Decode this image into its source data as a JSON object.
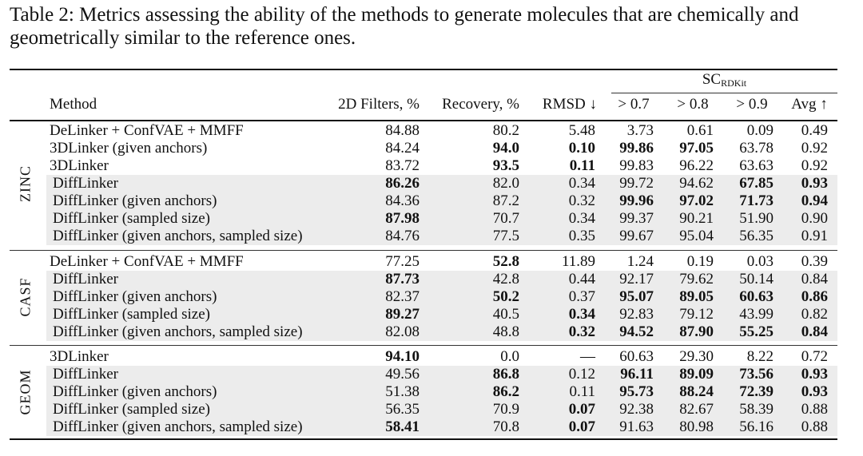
{
  "caption": "Table 2: Metrics assessing the ability of the methods to generate molecules that are chemically and geometrically similar to the reference ones.",
  "headers": {
    "method": "Method",
    "filters": "2D Filters, %",
    "recovery": "Recovery, %",
    "rmsd": "RMSD ↓",
    "sc_main": "SC",
    "sc_sub": "RDKit",
    "sc07": "> 0.7",
    "sc08": "> 0.8",
    "sc09": "> 0.9",
    "avg": "Avg ↑"
  },
  "groups": [
    {
      "name": "ZINC",
      "rows": [
        {
          "shaded": false,
          "method": "DeLinker + ConfVAE + MMFF",
          "filters": "84.88",
          "recovery": "80.2",
          "rmsd": "5.48",
          "sc07": "3.73",
          "sc08": "0.61",
          "sc09": "0.09",
          "avg": "0.49",
          "bold": []
        },
        {
          "shaded": false,
          "method": "3DLinker (given anchors)",
          "filters": "84.24",
          "recovery": "94.0",
          "rmsd": "0.10",
          "sc07": "99.86",
          "sc08": "97.05",
          "sc09": "63.78",
          "avg": "0.92",
          "bold": [
            "recovery",
            "rmsd",
            "sc07",
            "sc08"
          ]
        },
        {
          "shaded": false,
          "method": "3DLinker",
          "filters": "83.72",
          "recovery": "93.5",
          "rmsd": "0.11",
          "sc07": "99.83",
          "sc08": "96.22",
          "sc09": "63.63",
          "avg": "0.92",
          "bold": [
            "recovery",
            "rmsd"
          ]
        },
        {
          "shaded": true,
          "method": "DiffLinker",
          "filters": "86.26",
          "recovery": "82.0",
          "rmsd": "0.34",
          "sc07": "99.72",
          "sc08": "94.62",
          "sc09": "67.85",
          "avg": "0.93",
          "bold": [
            "filters",
            "sc09",
            "avg"
          ]
        },
        {
          "shaded": true,
          "method": "DiffLinker (given anchors)",
          "filters": "84.36",
          "recovery": "87.2",
          "rmsd": "0.32",
          "sc07": "99.96",
          "sc08": "97.02",
          "sc09": "71.73",
          "avg": "0.94",
          "bold": [
            "sc07",
            "sc08",
            "sc09",
            "avg"
          ]
        },
        {
          "shaded": true,
          "method": "DiffLinker (sampled size)",
          "filters": "87.98",
          "recovery": "70.7",
          "rmsd": "0.34",
          "sc07": "99.37",
          "sc08": "90.21",
          "sc09": "51.90",
          "avg": "0.90",
          "bold": [
            "filters"
          ]
        },
        {
          "shaded": true,
          "method": "DiffLinker (given anchors, sampled size)",
          "filters": "84.76",
          "recovery": "77.5",
          "rmsd": "0.35",
          "sc07": "99.67",
          "sc08": "95.04",
          "sc09": "56.35",
          "avg": "0.91",
          "bold": []
        }
      ]
    },
    {
      "name": "CASF",
      "rows": [
        {
          "shaded": false,
          "method": "DeLinker + ConfVAE + MMFF",
          "filters": "77.25",
          "recovery": "52.8",
          "rmsd": "11.89",
          "sc07": "1.24",
          "sc08": "0.19",
          "sc09": "0.03",
          "avg": "0.39",
          "bold": [
            "recovery"
          ]
        },
        {
          "shaded": true,
          "method": "DiffLinker",
          "filters": "87.73",
          "recovery": "42.8",
          "rmsd": "0.44",
          "sc07": "92.17",
          "sc08": "79.62",
          "sc09": "50.14",
          "avg": "0.84",
          "bold": [
            "filters"
          ]
        },
        {
          "shaded": true,
          "method": "DiffLinker (given anchors)",
          "filters": "82.37",
          "recovery": "50.2",
          "rmsd": "0.37",
          "sc07": "95.07",
          "sc08": "89.05",
          "sc09": "60.63",
          "avg": "0.86",
          "bold": [
            "recovery",
            "sc07",
            "sc08",
            "sc09",
            "avg"
          ]
        },
        {
          "shaded": true,
          "method": "DiffLinker (sampled size)",
          "filters": "89.27",
          "recovery": "40.5",
          "rmsd": "0.34",
          "sc07": "92.83",
          "sc08": "79.12",
          "sc09": "43.99",
          "avg": "0.82",
          "bold": [
            "filters",
            "rmsd"
          ]
        },
        {
          "shaded": true,
          "method": "DiffLinker (given anchors, sampled size)",
          "filters": "82.08",
          "recovery": "48.8",
          "rmsd": "0.32",
          "sc07": "94.52",
          "sc08": "87.90",
          "sc09": "55.25",
          "avg": "0.84",
          "bold": [
            "rmsd",
            "sc07",
            "sc08",
            "sc09",
            "avg"
          ]
        }
      ]
    },
    {
      "name": "GEOM",
      "rows": [
        {
          "shaded": false,
          "method": "3DLinker",
          "filters": "94.10",
          "recovery": "0.0",
          "rmsd": "—",
          "sc07": "60.63",
          "sc08": "29.30",
          "sc09": "8.22",
          "avg": "0.72",
          "bold": [
            "filters"
          ]
        },
        {
          "shaded": true,
          "method": "DiffLinker",
          "filters": "49.56",
          "recovery": "86.8",
          "rmsd": "0.12",
          "sc07": "96.11",
          "sc08": "89.09",
          "sc09": "73.56",
          "avg": "0.93",
          "bold": [
            "recovery",
            "sc07",
            "sc08",
            "sc09",
            "avg"
          ]
        },
        {
          "shaded": true,
          "method": "DiffLinker (given anchors)",
          "filters": "51.38",
          "recovery": "86.2",
          "rmsd": "0.11",
          "sc07": "95.73",
          "sc08": "88.24",
          "sc09": "72.39",
          "avg": "0.93",
          "bold": [
            "recovery",
            "sc07",
            "sc08",
            "sc09",
            "avg"
          ]
        },
        {
          "shaded": true,
          "method": "DiffLinker (sampled size)",
          "filters": "56.35",
          "recovery": "70.9",
          "rmsd": "0.07",
          "sc07": "92.38",
          "sc08": "82.67",
          "sc09": "58.39",
          "avg": "0.88",
          "bold": [
            "rmsd"
          ]
        },
        {
          "shaded": true,
          "method": "DiffLinker (given anchors, sampled size)",
          "filters": "58.41",
          "recovery": "70.8",
          "rmsd": "0.07",
          "sc07": "91.63",
          "sc08": "80.98",
          "sc09": "56.16",
          "avg": "0.88",
          "bold": [
            "filters",
            "rmsd"
          ]
        }
      ]
    }
  ]
}
